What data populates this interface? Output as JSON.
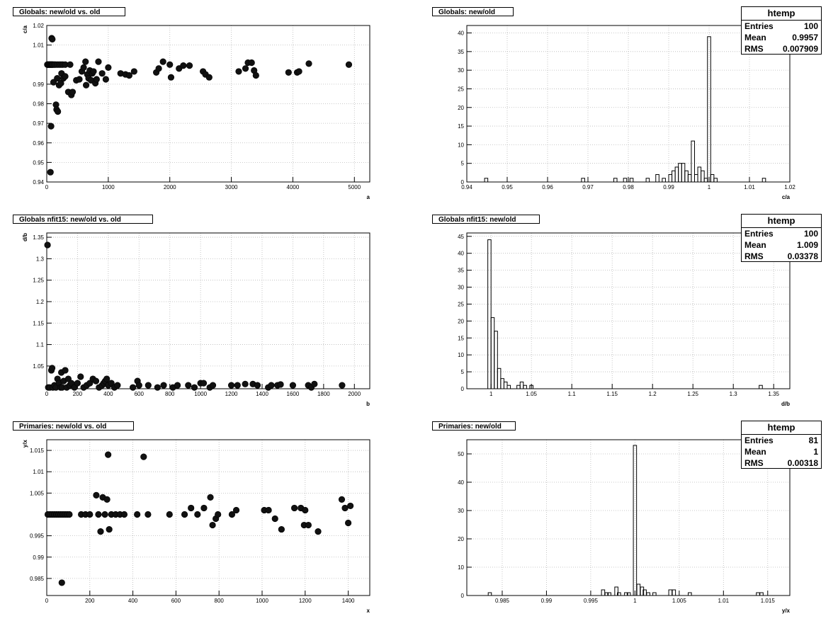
{
  "chart_data": [
    {
      "type": "scatter",
      "title": "Globals: new/old vs. old",
      "xlabel": "a",
      "ylabel": "c/a",
      "xlim": [
        0,
        5250
      ],
      "ylim": [
        0.94,
        1.02
      ],
      "xticks": [
        0,
        1000,
        2000,
        3000,
        4000,
        5000
      ],
      "yticks": [
        0.94,
        0.95,
        0.96,
        0.97,
        0.98,
        0.99,
        1.01,
        1.02
      ],
      "grid": true,
      "points": [
        [
          10,
          1.0
        ],
        [
          20,
          1.0
        ],
        [
          30,
          1.0
        ],
        [
          40,
          1.0
        ],
        [
          50,
          1.0
        ],
        [
          60,
          1.0
        ],
        [
          70,
          1.0
        ],
        [
          80,
          1.0
        ],
        [
          90,
          1.0
        ],
        [
          100,
          1.0
        ],
        [
          120,
          1.0
        ],
        [
          140,
          1.0
        ],
        [
          170,
          1.0
        ],
        [
          200,
          1.0
        ],
        [
          230,
          1.0
        ],
        [
          260,
          1.0
        ],
        [
          300,
          1.0
        ],
        [
          380,
          1.0
        ],
        [
          60,
          0.945
        ],
        [
          70,
          0.9685
        ],
        [
          80,
          1.0135
        ],
        [
          90,
          1.013
        ],
        [
          110,
          0.991
        ],
        [
          150,
          0.9795
        ],
        [
          160,
          0.977
        ],
        [
          180,
          0.976
        ],
        [
          170,
          0.993
        ],
        [
          200,
          0.9895
        ],
        [
          230,
          0.9905
        ],
        [
          240,
          0.9955
        ],
        [
          270,
          0.993
        ],
        [
          300,
          0.994
        ],
        [
          350,
          0.986
        ],
        [
          400,
          0.9845
        ],
        [
          420,
          0.986
        ],
        [
          480,
          0.992
        ],
        [
          530,
          0.9925
        ],
        [
          570,
          0.9965
        ],
        [
          600,
          0.9985
        ],
        [
          630,
          1.0015
        ],
        [
          640,
          0.9895
        ],
        [
          660,
          0.995
        ],
        [
          680,
          0.993
        ],
        [
          700,
          0.997
        ],
        [
          720,
          0.992
        ],
        [
          740,
          0.9955
        ],
        [
          760,
          0.9965
        ],
        [
          790,
          0.9905
        ],
        [
          810,
          0.9925
        ],
        [
          840,
          1.0015
        ],
        [
          900,
          0.9955
        ],
        [
          960,
          0.9925
        ],
        [
          1000,
          0.9985
        ],
        [
          1200,
          0.9955
        ],
        [
          1280,
          0.995
        ],
        [
          1340,
          0.9945
        ],
        [
          1420,
          0.9965
        ],
        [
          1780,
          0.996
        ],
        [
          1820,
          0.998
        ],
        [
          1890,
          1.0015
        ],
        [
          2000,
          1.0
        ],
        [
          2020,
          0.9935
        ],
        [
          2150,
          0.998
        ],
        [
          2220,
          0.9995
        ],
        [
          2320,
          0.9995
        ],
        [
          2540,
          0.9965
        ],
        [
          2580,
          0.995
        ],
        [
          2640,
          0.9935
        ],
        [
          3120,
          0.9965
        ],
        [
          3230,
          0.998
        ],
        [
          3270,
          1.001
        ],
        [
          3330,
          1.001
        ],
        [
          3370,
          0.997
        ],
        [
          3400,
          0.9945
        ],
        [
          3930,
          0.996
        ],
        [
          4070,
          0.996
        ],
        [
          4100,
          0.9965
        ],
        [
          4260,
          1.0005
        ],
        [
          4910,
          1.0
        ]
      ]
    },
    {
      "type": "bar",
      "title": "Globals: new/old",
      "xlabel": "c/a",
      "ylabel": "",
      "xlim": [
        0.94,
        1.02
      ],
      "ylim": [
        0,
        42
      ],
      "xticks": [
        0.94,
        0.95,
        0.96,
        0.97,
        0.98,
        0.99,
        1,
        1.01,
        1.02
      ],
      "yticks": [
        0,
        5,
        10,
        15,
        20,
        25,
        30,
        35,
        40
      ],
      "grid": true,
      "bin_width": 0.0008,
      "bins": [
        [
          0.9448,
          1
        ],
        [
          0.9688,
          1
        ],
        [
          0.9768,
          1
        ],
        [
          0.9792,
          1
        ],
        [
          0.9808,
          1
        ],
        [
          0.9848,
          1
        ],
        [
          0.9872,
          2
        ],
        [
          0.9888,
          1
        ],
        [
          0.9904,
          2
        ],
        [
          0.9912,
          3
        ],
        [
          0.992,
          4
        ],
        [
          0.9928,
          5
        ],
        [
          0.9936,
          5
        ],
        [
          0.9944,
          3
        ],
        [
          0.9952,
          2
        ],
        [
          0.996,
          11
        ],
        [
          0.9968,
          2
        ],
        [
          0.9976,
          4
        ],
        [
          0.9984,
          3
        ],
        [
          0.9992,
          1
        ],
        [
          1.0,
          39
        ],
        [
          1.0008,
          2
        ],
        [
          1.0016,
          1
        ],
        [
          1.0136,
          1
        ]
      ],
      "stats": {
        "name": "htemp",
        "entries_label": "Entries",
        "entries": "100",
        "mean_label": "Mean",
        "mean": "0.9957",
        "rms_label": "RMS",
        "rms": "0.007909"
      }
    },
    {
      "type": "scatter",
      "title": "Globals nfit15: new/old vs. old",
      "xlabel": "b",
      "ylabel": "d/b",
      "xlim": [
        0,
        2100
      ],
      "ylim": [
        0.997,
        1.36
      ],
      "xticks": [
        0,
        200,
        400,
        600,
        800,
        1000,
        1200,
        1400,
        1600,
        1800,
        2000
      ],
      "yticks": [
        1.05,
        1.1,
        1.15,
        1.2,
        1.25,
        1.3,
        1.35
      ],
      "grid": true,
      "points": [
        [
          5,
          1.332
        ],
        [
          10,
          1.0
        ],
        [
          20,
          1.0
        ],
        [
          30,
          1.04
        ],
        [
          35,
          1.045
        ],
        [
          40,
          1.0
        ],
        [
          50,
          1.005
        ],
        [
          60,
          1.0
        ],
        [
          70,
          1.02
        ],
        [
          80,
          1.01
        ],
        [
          90,
          1.0
        ],
        [
          95,
          1.035
        ],
        [
          100,
          1.0
        ],
        [
          110,
          1.015
        ],
        [
          120,
          1.04
        ],
        [
          130,
          1.0
        ],
        [
          140,
          1.02
        ],
        [
          150,
          1.005
        ],
        [
          160,
          1.01
        ],
        [
          180,
          1.0
        ],
        [
          200,
          1.01
        ],
        [
          220,
          1.025
        ],
        [
          240,
          1.0
        ],
        [
          260,
          1.005
        ],
        [
          280,
          1.01
        ],
        [
          300,
          1.02
        ],
        [
          320,
          1.015
        ],
        [
          340,
          1.0
        ],
        [
          360,
          1.005
        ],
        [
          370,
          1.01
        ],
        [
          380,
          1.015
        ],
        [
          390,
          1.02
        ],
        [
          400,
          1.005
        ],
        [
          420,
          1.01
        ],
        [
          440,
          1.0
        ],
        [
          460,
          1.005
        ],
        [
          560,
          1.0
        ],
        [
          590,
          1.015
        ],
        [
          600,
          1.005
        ],
        [
          660,
          1.005
        ],
        [
          720,
          1.0
        ],
        [
          760,
          1.005
        ],
        [
          820,
          1.0
        ],
        [
          850,
          1.005
        ],
        [
          920,
          1.005
        ],
        [
          960,
          1.0
        ],
        [
          1000,
          1.01
        ],
        [
          1020,
          1.01
        ],
        [
          1060,
          1.0
        ],
        [
          1080,
          1.005
        ],
        [
          1200,
          1.005
        ],
        [
          1240,
          1.005
        ],
        [
          1290,
          1.008
        ],
        [
          1340,
          1.008
        ],
        [
          1370,
          1.005
        ],
        [
          1440,
          1.0
        ],
        [
          1460,
          1.005
        ],
        [
          1500,
          1.005
        ],
        [
          1520,
          1.007
        ],
        [
          1600,
          1.005
        ],
        [
          1700,
          1.005
        ],
        [
          1720,
          1.0
        ],
        [
          1740,
          1.008
        ],
        [
          1920,
          1.005
        ]
      ]
    },
    {
      "type": "bar",
      "title": "Globals nfit15: new/old",
      "xlabel": "d/b",
      "ylabel": "",
      "xlim": [
        0.97,
        1.37
      ],
      "ylim": [
        0,
        46
      ],
      "xticks": [
        1,
        1.05,
        1.1,
        1.15,
        1.2,
        1.25,
        1.3,
        1.35
      ],
      "yticks": [
        0,
        5,
        10,
        15,
        20,
        25,
        30,
        35,
        40,
        45
      ],
      "grid": true,
      "bin_width": 0.004,
      "bins": [
        [
          0.998,
          44
        ],
        [
          1.002,
          21
        ],
        [
          1.006,
          17
        ],
        [
          1.01,
          6
        ],
        [
          1.014,
          3
        ],
        [
          1.018,
          2
        ],
        [
          1.022,
          1
        ],
        [
          1.034,
          1
        ],
        [
          1.038,
          2
        ],
        [
          1.042,
          1
        ],
        [
          1.05,
          1
        ],
        [
          1.334,
          1
        ]
      ],
      "stats": {
        "name": "htemp",
        "entries_label": "Entries",
        "entries": "100",
        "mean_label": "Mean",
        "mean": "1.009",
        "rms_label": "RMS",
        "rms": "0.03378"
      }
    },
    {
      "type": "scatter",
      "title": "Primaries: new/old vs. old",
      "xlabel": "x",
      "ylabel": "y/x",
      "xlim": [
        0,
        1500
      ],
      "ylim": [
        0.981,
        1.0175
      ],
      "xticks": [
        0,
        200,
        400,
        600,
        800,
        1000,
        1200,
        1400
      ],
      "yticks": [
        0.985,
        0.99,
        0.995,
        1.005,
        1.01,
        1.015
      ],
      "grid": true,
      "points": [
        [
          5,
          1.0
        ],
        [
          15,
          1.0
        ],
        [
          25,
          1.0
        ],
        [
          35,
          1.0
        ],
        [
          45,
          1.0
        ],
        [
          55,
          1.0
        ],
        [
          65,
          1.0
        ],
        [
          75,
          1.0
        ],
        [
          85,
          1.0
        ],
        [
          95,
          1.0
        ],
        [
          105,
          1.0
        ],
        [
          70,
          0.984
        ],
        [
          160,
          1.0
        ],
        [
          180,
          1.0
        ],
        [
          200,
          1.0
        ],
        [
          230,
          1.0045
        ],
        [
          240,
          1.0
        ],
        [
          250,
          0.996
        ],
        [
          260,
          1.004
        ],
        [
          270,
          1.0
        ],
        [
          280,
          1.0035
        ],
        [
          285,
          1.014
        ],
        [
          290,
          0.9965
        ],
        [
          300,
          1.0
        ],
        [
          320,
          1.0
        ],
        [
          340,
          1.0
        ],
        [
          360,
          1.0
        ],
        [
          420,
          1.0
        ],
        [
          450,
          1.0135
        ],
        [
          470,
          1.0
        ],
        [
          570,
          1.0
        ],
        [
          640,
          1.0
        ],
        [
          670,
          1.0015
        ],
        [
          700,
          1.0
        ],
        [
          730,
          1.0015
        ],
        [
          760,
          1.004
        ],
        [
          770,
          0.9975
        ],
        [
          785,
          0.999
        ],
        [
          795,
          1.0
        ],
        [
          860,
          1.0
        ],
        [
          880,
          1.001
        ],
        [
          1010,
          1.001
        ],
        [
          1030,
          1.001
        ],
        [
          1060,
          0.999
        ],
        [
          1090,
          0.9965
        ],
        [
          1150,
          1.0015
        ],
        [
          1180,
          1.0015
        ],
        [
          1195,
          0.9975
        ],
        [
          1200,
          1.001
        ],
        [
          1215,
          0.9975
        ],
        [
          1260,
          0.996
        ],
        [
          1370,
          1.0035
        ],
        [
          1385,
          1.0015
        ],
        [
          1400,
          0.998
        ],
        [
          1410,
          1.002
        ]
      ]
    },
    {
      "type": "bar",
      "title": "Primaries: new/old",
      "xlabel": "y/x",
      "ylabel": "",
      "xlim": [
        0.981,
        1.0175
      ],
      "ylim": [
        0,
        55
      ],
      "xticks": [
        0.985,
        0.99,
        0.995,
        1,
        1.005,
        1.01,
        1.015
      ],
      "yticks": [
        0,
        10,
        20,
        30,
        40,
        50
      ],
      "grid": true,
      "bin_width": 0.000365,
      "bins": [
        [
          0.9836,
          1
        ],
        [
          0.9964,
          2
        ],
        [
          0.9968,
          1
        ],
        [
          0.9971,
          1
        ],
        [
          0.9979,
          3
        ],
        [
          0.9982,
          1
        ],
        [
          0.999,
          1
        ],
        [
          0.9993,
          1
        ],
        [
          1.0,
          53
        ],
        [
          1.0004,
          4
        ],
        [
          1.0008,
          3
        ],
        [
          1.0011,
          2
        ],
        [
          1.0015,
          1
        ],
        [
          1.0022,
          1
        ],
        [
          1.004,
          2
        ],
        [
          1.0044,
          2
        ],
        [
          1.0062,
          1
        ],
        [
          1.0139,
          1
        ],
        [
          1.0143,
          1
        ]
      ],
      "stats": {
        "name": "htemp",
        "entries_label": "Entries",
        "entries": "81",
        "mean_label": "Mean",
        "mean": "1",
        "rms_label": "RMS",
        "rms": "0.00318"
      }
    }
  ]
}
